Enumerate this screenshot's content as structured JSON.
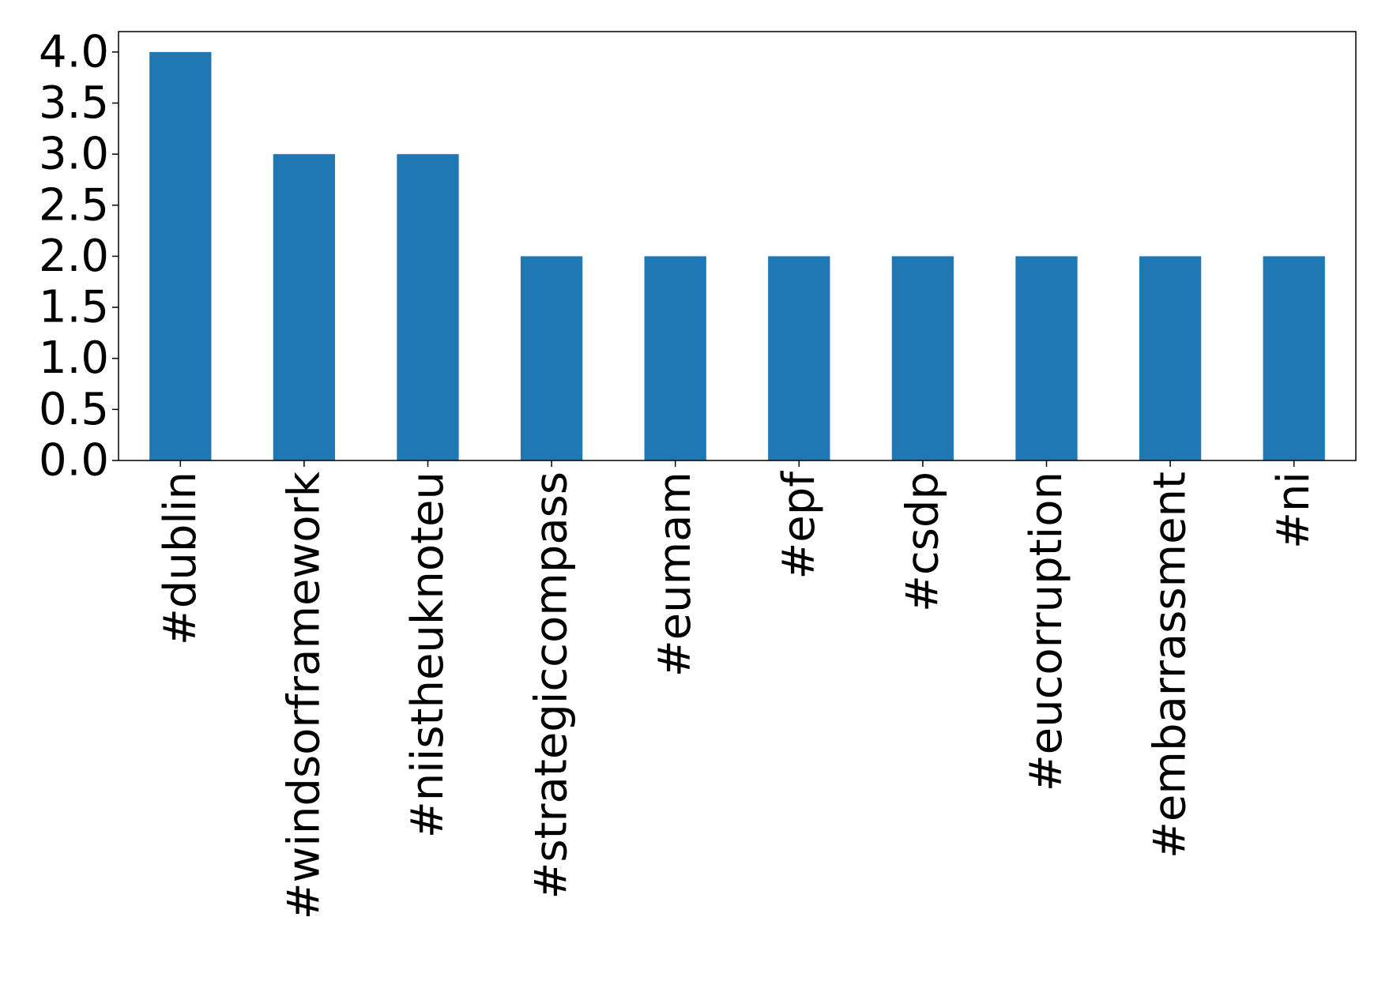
{
  "chart_data": {
    "type": "bar",
    "categories": [
      "#dublin",
      "#windsorframework",
      "#niistheuknoteu",
      "#strategiccompass",
      "#eumam",
      "#epf",
      "#csdp",
      "#eucorruption",
      "#embarrassment",
      "#ni"
    ],
    "values": [
      4,
      3,
      3,
      2,
      2,
      2,
      2,
      2,
      2,
      2
    ],
    "color": "#1f77b4",
    "ylim": [
      0,
      4.2
    ],
    "yticks": [
      {
        "value": 0,
        "label": "0.0"
      },
      {
        "value": 0.5,
        "label": "0.5"
      },
      {
        "value": 1,
        "label": "1.0"
      },
      {
        "value": 1.5,
        "label": "1.5"
      },
      {
        "value": 2,
        "label": "2.0"
      },
      {
        "value": 2.5,
        "label": "2.5"
      },
      {
        "value": 3,
        "label": "3.0"
      },
      {
        "value": 3.5,
        "label": "3.5"
      },
      {
        "value": 4,
        "label": "4.0"
      }
    ],
    "grid": false
  }
}
